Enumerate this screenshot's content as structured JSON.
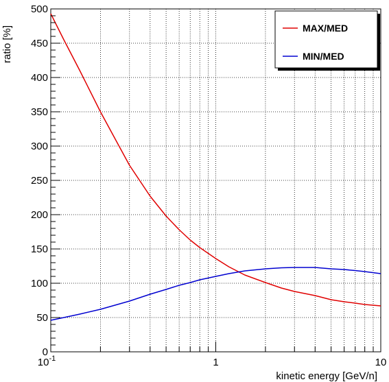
{
  "chart_data": {
    "type": "line",
    "title": "",
    "xlabel": "kinetic energy [GeV/n]",
    "ylabel": "ratio [%]",
    "x_scale": "log",
    "xlim": [
      0.1,
      10
    ],
    "ylim": [
      0,
      500
    ],
    "grid": true,
    "legend_position": "top-right",
    "x_tick_labels": [
      {
        "value": 0.1,
        "base": "10",
        "exp": "-1"
      },
      {
        "value": 1,
        "base": "1",
        "exp": ""
      },
      {
        "value": 10,
        "base": "10",
        "exp": ""
      }
    ],
    "y_ticks": [
      0,
      50,
      100,
      150,
      200,
      250,
      300,
      350,
      400,
      450,
      500
    ],
    "y_tick_labels": [
      "0",
      "50",
      "100",
      "150",
      "200",
      "250",
      "300",
      "350",
      "400",
      "450",
      "500"
    ],
    "series": [
      {
        "name": "MAX/MED",
        "color": "#e00000",
        "points": [
          [
            0.1,
            493
          ],
          [
            0.12,
            455
          ],
          [
            0.15,
            410
          ],
          [
            0.2,
            350
          ],
          [
            0.25,
            307
          ],
          [
            0.3,
            272
          ],
          [
            0.4,
            227
          ],
          [
            0.5,
            198
          ],
          [
            0.6,
            178
          ],
          [
            0.7,
            163
          ],
          [
            0.8,
            152
          ],
          [
            1.0,
            136
          ],
          [
            1.2,
            124
          ],
          [
            1.5,
            112
          ],
          [
            2.0,
            101
          ],
          [
            2.5,
            93
          ],
          [
            3.0,
            88
          ],
          [
            4.0,
            82
          ],
          [
            5.0,
            76
          ],
          [
            6.0,
            73
          ],
          [
            7.0,
            71
          ],
          [
            8.0,
            69
          ],
          [
            10.0,
            67
          ]
        ]
      },
      {
        "name": "MIN/MED",
        "color": "#0000d0",
        "points": [
          [
            0.1,
            46
          ],
          [
            0.12,
            50
          ],
          [
            0.15,
            55
          ],
          [
            0.2,
            62
          ],
          [
            0.3,
            74
          ],
          [
            0.4,
            84
          ],
          [
            0.5,
            91
          ],
          [
            0.6,
            97
          ],
          [
            0.7,
            101
          ],
          [
            0.8,
            105
          ],
          [
            1.0,
            110
          ],
          [
            1.2,
            114
          ],
          [
            1.5,
            118
          ],
          [
            2.0,
            121
          ],
          [
            2.5,
            122.5
          ],
          [
            3.0,
            123
          ],
          [
            3.5,
            123
          ],
          [
            4.0,
            123
          ],
          [
            5.0,
            121
          ],
          [
            6.0,
            120
          ],
          [
            7.0,
            118.5
          ],
          [
            8.0,
            117
          ],
          [
            10.0,
            114
          ]
        ]
      }
    ]
  }
}
